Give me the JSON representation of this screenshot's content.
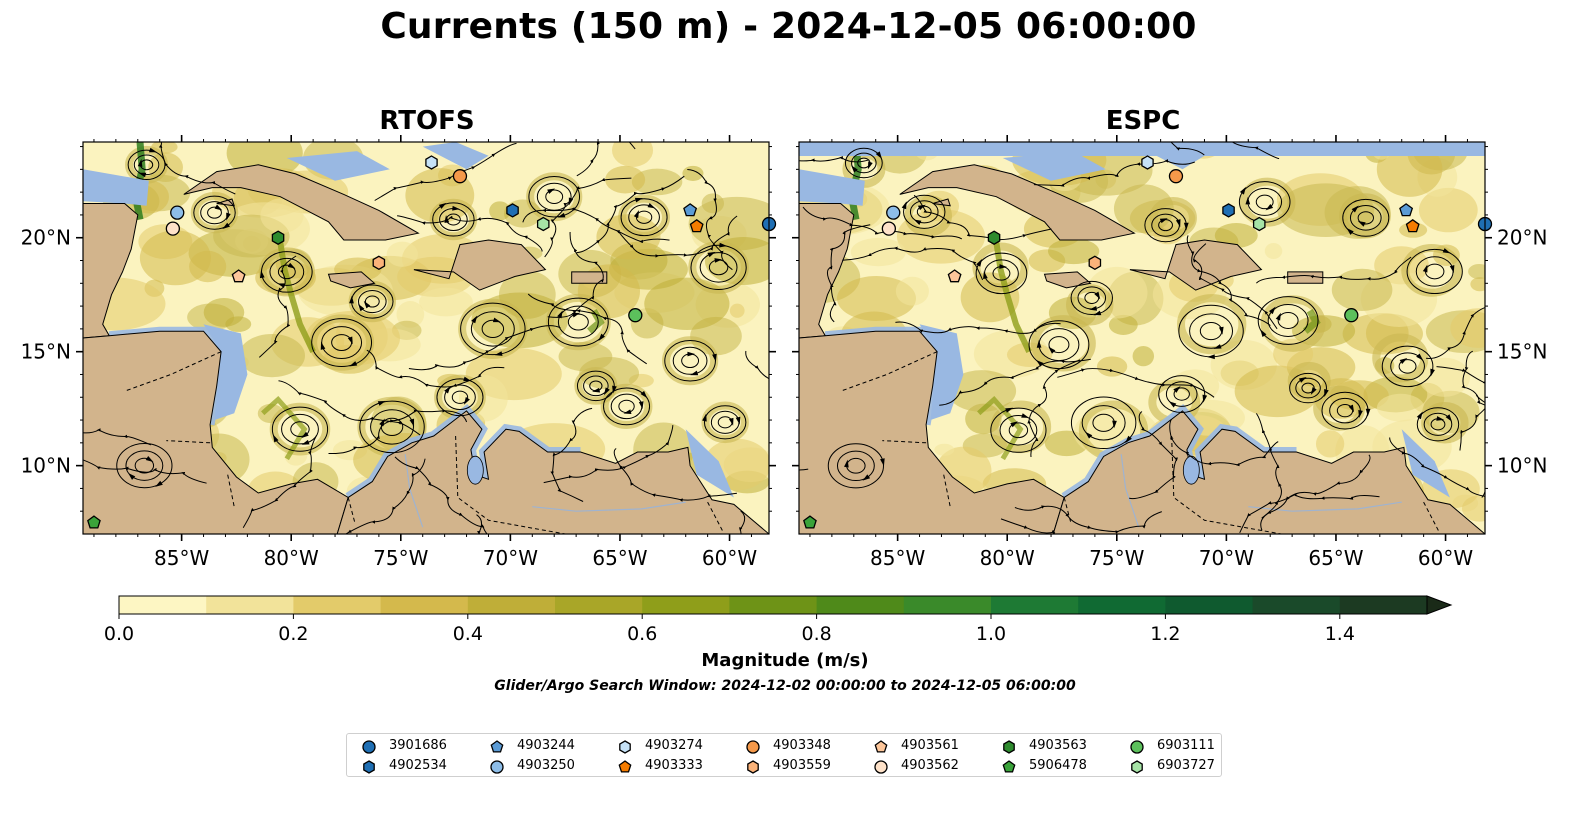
{
  "title": "Currents (150 m) - 2024-12-05 06:00:00",
  "panels": [
    {
      "title": "RTOFS"
    },
    {
      "title": "ESPC"
    }
  ],
  "map": {
    "lon_range": [
      -89.5,
      -58.2
    ],
    "lat_range": [
      7.0,
      24.2
    ],
    "lon_ticks": [
      "85°W",
      "80°W",
      "75°W",
      "70°W",
      "65°W",
      "60°W"
    ],
    "lon_tick_values": [
      -85,
      -80,
      -75,
      -70,
      -65,
      -60
    ],
    "lat_ticks": [
      "20°N",
      "15°N",
      "10°N"
    ],
    "lat_tick_values": [
      20,
      15,
      10
    ],
    "land_color": "#d2b48c",
    "shelf_color": "#99b8e2",
    "ocean_low_color": "#fbf3bf",
    "ocean_mid_color": "#c9b851",
    "ocean_high_color": "#2e7d1f"
  },
  "colorbar": {
    "label": "Magnitude (m/s)",
    "range": [
      0.0,
      1.5
    ],
    "ticks": [
      "0.0",
      "0.2",
      "0.4",
      "0.6",
      "0.8",
      "1.0",
      "1.2",
      "1.4"
    ],
    "tick_values": [
      0.0,
      0.2,
      0.4,
      0.6,
      0.8,
      1.0,
      1.2,
      1.4
    ],
    "colors": [
      "#fdf6c3",
      "#f2e39a",
      "#e3cb6a",
      "#d4b94c",
      "#bfae38",
      "#a9a628",
      "#8f9e1a",
      "#6e9317",
      "#4f8a1a",
      "#3a8a2a",
      "#1e7a34",
      "#106a33",
      "#0f5a2f",
      "#1a4a2a",
      "#1c3a22",
      "#1a2a18"
    ]
  },
  "subtitle": "Glider/Argo Search Window: 2024-12-02 00:00:00 to 2024-12-05 06:00:00",
  "legend": [
    {
      "id": "3901686",
      "marker": "circle",
      "color": "#1f6fb4"
    },
    {
      "id": "4902534",
      "marker": "hexagon",
      "color": "#1f6fb4"
    },
    {
      "id": "4903244",
      "marker": "pentagon",
      "color": "#5b9bd5"
    },
    {
      "id": "4903250",
      "marker": "circle",
      "color": "#8dbde8"
    },
    {
      "id": "4903274",
      "marker": "hexagon",
      "color": "#c6e2f7"
    },
    {
      "id": "4903333",
      "marker": "pentagon",
      "color": "#f57c00"
    },
    {
      "id": "4903348",
      "marker": "circle",
      "color": "#f5994a"
    },
    {
      "id": "4903559",
      "marker": "hexagon",
      "color": "#fbb37a"
    },
    {
      "id": "4903561",
      "marker": "pentagon",
      "color": "#fdc69a"
    },
    {
      "id": "4903562",
      "marker": "circle",
      "color": "#fee2c9"
    },
    {
      "id": "4903563",
      "marker": "hexagon",
      "color": "#2e8b2e"
    },
    {
      "id": "5906478",
      "marker": "pentagon",
      "color": "#3aa33a"
    },
    {
      "id": "6903111",
      "marker": "circle",
      "color": "#5cc05c"
    },
    {
      "id": "6903727",
      "marker": "hexagon",
      "color": "#a6e3a6"
    }
  ],
  "floats": [
    {
      "id": "3901686",
      "lon": -58.2,
      "lat": 20.6
    },
    {
      "id": "4902534",
      "lon": -69.9,
      "lat": 21.2
    },
    {
      "id": "4903244",
      "lon": -61.8,
      "lat": 21.2
    },
    {
      "id": "4903250",
      "lon": -85.2,
      "lat": 21.1
    },
    {
      "id": "4903274",
      "lon": -73.6,
      "lat": 23.3
    },
    {
      "id": "4903333",
      "lon": -61.5,
      "lat": 20.5
    },
    {
      "id": "4903348",
      "lon": -72.3,
      "lat": 22.7
    },
    {
      "id": "4903559",
      "lon": -76.0,
      "lat": 18.9
    },
    {
      "id": "4903561",
      "lon": -82.4,
      "lat": 18.3
    },
    {
      "id": "4903562",
      "lon": -85.4,
      "lat": 20.4
    },
    {
      "id": "4903563",
      "lon": -80.6,
      "lat": 20.0
    },
    {
      "id": "5906478",
      "lon": -89.0,
      "lat": 7.5
    },
    {
      "id": "6903111",
      "lon": -64.3,
      "lat": 16.6
    },
    {
      "id": "6903727",
      "lon": -68.5,
      "lat": 20.6
    }
  ]
}
